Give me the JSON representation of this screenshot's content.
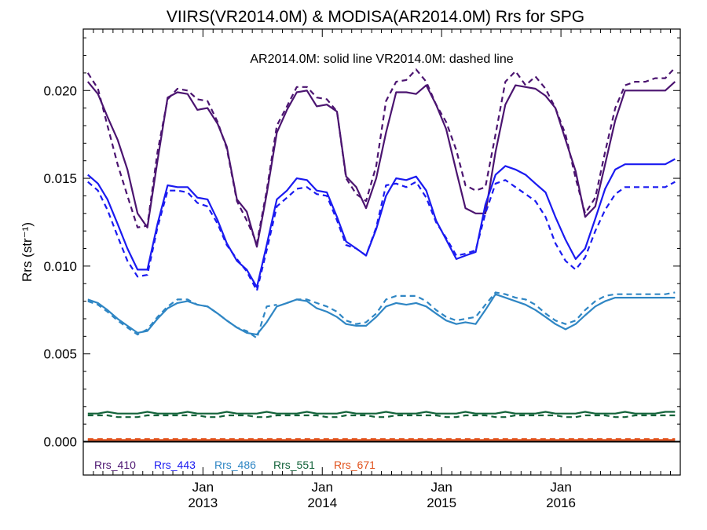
{
  "chart_data": {
    "type": "line",
    "title": "VIIRS(VR2014.0M) & MODISA(AR2014.0M)  Rrs for SPG",
    "annotation": "AR2014.0M: solid line   VR2014.0M: dashed line",
    "ylabel": "Rrs (str⁻¹)",
    "xlabel": "",
    "ylim": [
      -0.0019,
      0.0235
    ],
    "xlim": [
      "2012-01-01",
      "2016-12-31"
    ],
    "grid": false,
    "legend_placement": "bottom-left inside",
    "y_ticks": [
      {
        "value": 0.0,
        "label": "0.000"
      },
      {
        "value": 0.005,
        "label": "0.005"
      },
      {
        "value": 0.01,
        "label": "0.010"
      },
      {
        "value": 0.015,
        "label": "0.015"
      },
      {
        "value": 0.02,
        "label": "0.020"
      }
    ],
    "x_ticks": [
      {
        "date": "2013-01-01",
        "month": "Jan",
        "year": "2013"
      },
      {
        "date": "2014-01-01",
        "month": "Jan",
        "year": "2014"
      },
      {
        "date": "2015-01-01",
        "month": "Jan",
        "year": "2015"
      },
      {
        "date": "2016-01-01",
        "month": "Jan",
        "year": "2016"
      }
    ],
    "x": [
      "2012-01",
      "2012-02",
      "2012-03",
      "2012-04",
      "2012-05",
      "2012-06",
      "2012-07",
      "2012-08",
      "2012-09",
      "2012-10",
      "2012-11",
      "2012-12",
      "2013-01",
      "2013-02",
      "2013-03",
      "2013-04",
      "2013-05",
      "2013-06",
      "2013-07",
      "2013-08",
      "2013-09",
      "2013-10",
      "2013-11",
      "2013-12",
      "2014-01",
      "2014-02",
      "2014-03",
      "2014-04",
      "2014-05",
      "2014-06",
      "2014-07",
      "2014-08",
      "2014-09",
      "2014-10",
      "2014-11",
      "2014-12",
      "2015-01",
      "2015-02",
      "2015-03",
      "2015-04",
      "2015-05",
      "2015-06",
      "2015-07",
      "2015-08",
      "2015-09",
      "2015-10",
      "2015-11",
      "2015-12",
      "2016-01",
      "2016-02",
      "2016-03",
      "2016-04",
      "2016-05",
      "2016-06",
      "2016-07",
      "2016-08",
      "2016-09",
      "2016-10",
      "2016-11",
      "2016-12"
    ],
    "series": [
      {
        "name": "Rrs_410",
        "sensor": "AR2014.0M",
        "color": "#4b1470",
        "dash": false,
        "break_after_index": null,
        "values": [
          0.0205,
          0.0198,
          0.0185,
          0.0172,
          0.0155,
          0.013,
          0.0122,
          0.016,
          0.0196,
          0.0199,
          0.0198,
          0.0189,
          0.019,
          0.0181,
          0.0168,
          0.0138,
          0.0131,
          0.0111,
          0.0141,
          0.0176,
          0.0189,
          0.0199,
          0.02,
          0.0191,
          0.0192,
          0.0188,
          0.0151,
          0.0145,
          0.0133,
          0.015,
          0.0176,
          0.0199,
          0.0199,
          0.0198,
          0.0203,
          0.0192,
          0.0178,
          0.0154,
          0.0133,
          0.013,
          0.013,
          0.0165,
          0.0192,
          0.0203,
          0.0202,
          0.0201,
          0.0197,
          0.019,
          0.0172,
          0.0154,
          0.0128,
          0.0134,
          0.0158,
          0.0183,
          0.02,
          0.02,
          0.02,
          0.02,
          0.02,
          0.0205
        ]
      },
      {
        "name": "Rrs_410",
        "sensor": "VR2014.0M",
        "color": "#4b1470",
        "dash": true,
        "break_after_index": null,
        "values": [
          0.021,
          0.0201,
          0.018,
          0.0158,
          0.014,
          0.0122,
          0.0123,
          0.0165,
          0.0195,
          0.0201,
          0.02,
          0.0195,
          0.0194,
          0.0182,
          0.0167,
          0.0137,
          0.0126,
          0.0113,
          0.0143,
          0.018,
          0.0191,
          0.0202,
          0.0202,
          0.0196,
          0.0195,
          0.0188,
          0.015,
          0.0141,
          0.0137,
          0.0157,
          0.0194,
          0.0205,
          0.0206,
          0.0212,
          0.0205,
          0.0192,
          0.0182,
          0.0166,
          0.0146,
          0.0143,
          0.0145,
          0.0175,
          0.0205,
          0.0211,
          0.0203,
          0.0208,
          0.0201,
          0.019,
          0.0175,
          0.015,
          0.013,
          0.0139,
          0.0165,
          0.019,
          0.0203,
          0.0205,
          0.0205,
          0.0207,
          0.0207,
          0.0213
        ]
      },
      {
        "name": "Rrs_443",
        "sensor": "AR2014.0M",
        "color": "#1a1af0",
        "dash": false,
        "break_after_index": null,
        "values": [
          0.0152,
          0.0147,
          0.0138,
          0.0124,
          0.011,
          0.0098,
          0.0098,
          0.0124,
          0.0146,
          0.0145,
          0.0145,
          0.0139,
          0.0138,
          0.0126,
          0.0113,
          0.0103,
          0.0098,
          0.0088,
          0.0112,
          0.0138,
          0.0143,
          0.015,
          0.0149,
          0.0143,
          0.0142,
          0.0128,
          0.0114,
          0.011,
          0.0106,
          0.0121,
          0.014,
          0.015,
          0.0149,
          0.0151,
          0.0143,
          0.0126,
          0.0115,
          0.0104,
          0.0106,
          0.0108,
          0.0135,
          0.0152,
          0.0157,
          0.0155,
          0.0152,
          0.0147,
          0.0142,
          0.0128,
          0.0115,
          0.0104,
          0.011,
          0.0127,
          0.0144,
          0.0155,
          0.0158,
          0.0158,
          0.0158,
          0.0158,
          0.0158,
          0.0161
        ]
      },
      {
        "name": "Rrs_443",
        "sensor": "VR2014.0M",
        "color": "#1a1af0",
        "dash": true,
        "break_after_index": null,
        "values": [
          0.0148,
          0.0143,
          0.0132,
          0.0117,
          0.0103,
          0.0094,
          0.0095,
          0.0122,
          0.0143,
          0.0143,
          0.0142,
          0.0136,
          0.0134,
          0.0124,
          0.0112,
          0.0104,
          0.0097,
          0.0086,
          0.0109,
          0.0134,
          0.0139,
          0.0144,
          0.0145,
          0.0141,
          0.014,
          0.0126,
          0.0112,
          0.011,
          0.0106,
          0.0122,
          0.0146,
          0.0147,
          0.0145,
          0.0148,
          0.0139,
          0.0125,
          0.0116,
          0.0106,
          0.0107,
          0.0109,
          0.013,
          0.0147,
          0.0149,
          0.0145,
          0.0141,
          0.0137,
          0.0128,
          0.0113,
          0.0103,
          0.0098,
          0.0105,
          0.012,
          0.0132,
          0.0141,
          0.0145,
          0.0145,
          0.0145,
          0.0145,
          0.0145,
          0.0148
        ]
      },
      {
        "name": "Rrs_486",
        "sensor": "AR2014.0M",
        "color": "#2f86c4",
        "dash": false,
        "break_after_index": null,
        "values": [
          0.0081,
          0.0079,
          0.0075,
          0.007,
          0.0066,
          0.0062,
          0.0063,
          0.007,
          0.0076,
          0.0079,
          0.008,
          0.0078,
          0.0077,
          0.0073,
          0.0069,
          0.0065,
          0.0062,
          0.0061,
          0.0068,
          0.0077,
          0.0079,
          0.0081,
          0.008,
          0.0076,
          0.0074,
          0.0071,
          0.0067,
          0.0066,
          0.0066,
          0.0071,
          0.0077,
          0.0079,
          0.0078,
          0.0079,
          0.0077,
          0.0073,
          0.0069,
          0.0067,
          0.0068,
          0.0067,
          0.0075,
          0.0084,
          0.0082,
          0.008,
          0.0078,
          0.0075,
          0.0071,
          0.0067,
          0.0064,
          0.0067,
          0.0072,
          0.0077,
          0.008,
          0.0082,
          0.0082,
          0.0082,
          0.0082,
          0.0082,
          0.0082,
          0.0082
        ]
      },
      {
        "name": "Rrs_486",
        "sensor": "VR2014.0M",
        "color": "#2f86c4",
        "dash": true,
        "break_after_index": 19,
        "values": [
          0.008,
          0.0078,
          0.0074,
          0.0069,
          0.0065,
          0.0061,
          0.0064,
          0.0071,
          0.0077,
          0.0081,
          0.0081,
          0.0078,
          0.0077,
          0.0073,
          0.0069,
          0.0065,
          0.0063,
          0.0059,
          0.0077,
          0.0078,
          0.0079,
          0.0081,
          0.0081,
          0.0079,
          0.0077,
          0.0074,
          0.0069,
          0.0067,
          0.0068,
          0.0073,
          0.0081,
          0.0083,
          0.0083,
          0.0083,
          0.008,
          0.0075,
          0.0071,
          0.0069,
          0.007,
          0.0071,
          0.0078,
          0.0085,
          0.0084,
          0.0082,
          0.0081,
          0.0078,
          0.0073,
          0.0069,
          0.0067,
          0.0069,
          0.0075,
          0.008,
          0.0083,
          0.0084,
          0.0084,
          0.0084,
          0.0084,
          0.0084,
          0.0084,
          0.0085
        ]
      },
      {
        "name": "Rrs_551",
        "sensor": "AR2014.0M",
        "color": "#13633a",
        "dash": false,
        "break_after_index": null,
        "values": [
          0.0016,
          0.0016,
          0.0017,
          0.0016,
          0.0016,
          0.0016,
          0.0017,
          0.0016,
          0.0016,
          0.0016,
          0.0017,
          0.0016,
          0.0016,
          0.0016,
          0.0017,
          0.0016,
          0.0016,
          0.0016,
          0.0017,
          0.0016,
          0.0016,
          0.0016,
          0.0017,
          0.0016,
          0.0016,
          0.0016,
          0.0017,
          0.0016,
          0.0016,
          0.0016,
          0.0017,
          0.0016,
          0.0016,
          0.0016,
          0.0017,
          0.0016,
          0.0016,
          0.0016,
          0.0017,
          0.0016,
          0.0016,
          0.0016,
          0.0017,
          0.0016,
          0.0016,
          0.0016,
          0.0017,
          0.0016,
          0.0016,
          0.0016,
          0.0017,
          0.0016,
          0.0016,
          0.0016,
          0.0017,
          0.0016,
          0.0016,
          0.0016,
          0.0017,
          0.0017
        ]
      },
      {
        "name": "Rrs_551",
        "sensor": "VR2014.0M",
        "color": "#13633a",
        "dash": true,
        "break_after_index": null,
        "values": [
          0.0015,
          0.0015,
          0.0015,
          0.0014,
          0.0014,
          0.0014,
          0.0015,
          0.0015,
          0.0015,
          0.0015,
          0.0015,
          0.0015,
          0.0014,
          0.0014,
          0.0015,
          0.0015,
          0.0015,
          0.0014,
          0.0014,
          0.0015,
          0.0015,
          0.0015,
          0.0015,
          0.0015,
          0.0014,
          0.0014,
          0.0015,
          0.0015,
          0.0015,
          0.0014,
          0.0014,
          0.0015,
          0.0015,
          0.0015,
          0.0015,
          0.0015,
          0.0014,
          0.0014,
          0.0015,
          0.0015,
          0.0015,
          0.0014,
          0.0014,
          0.0015,
          0.0015,
          0.0015,
          0.0015,
          0.0015,
          0.0014,
          0.0014,
          0.0015,
          0.0015,
          0.0015,
          0.0014,
          0.0014,
          0.0015,
          0.0015,
          0.0015,
          0.0015,
          0.0015
        ]
      },
      {
        "name": "Rrs_671",
        "sensor": "AR2014.0M",
        "color": "#e0501a",
        "dash": false,
        "break_after_index": null,
        "values": [
          0.0001,
          0.0001,
          0.0001,
          0.0001,
          0.0001,
          0.0001,
          0.0001,
          0.0001,
          0.0001,
          0.0001,
          0.0001,
          0.0001,
          0.0001,
          0.0001,
          0.0001,
          0.0001,
          0.0001,
          0.0001,
          0.0001,
          0.0001,
          0.0001,
          0.0001,
          0.0001,
          0.0001,
          0.0001,
          0.0001,
          0.0001,
          0.0001,
          0.0001,
          0.0001,
          0.0001,
          0.0001,
          0.0001,
          0.0001,
          0.0001,
          0.0001,
          0.0001,
          0.0001,
          0.0001,
          0.0001,
          0.0001,
          0.0001,
          0.0001,
          0.0001,
          0.0001,
          0.0001,
          0.0001,
          0.0001,
          0.0001,
          0.0001,
          0.0001,
          0.0001,
          0.0001,
          0.0001,
          0.0001,
          0.0001,
          0.0001,
          0.0001,
          0.0001,
          0.0001
        ]
      },
      {
        "name": "Rrs_671",
        "sensor": "VR2014.0M",
        "color": "#e0501a",
        "dash": true,
        "break_after_index": null,
        "values": [
          0.00015,
          0.00015,
          0.00015,
          0.00015,
          0.00015,
          0.00015,
          0.00015,
          0.00015,
          0.00015,
          0.00015,
          0.00015,
          0.00015,
          0.00015,
          0.00015,
          0.00015,
          0.00015,
          0.00015,
          0.00015,
          0.00015,
          0.00015,
          0.00015,
          0.00015,
          0.00015,
          0.00015,
          0.00015,
          0.00015,
          0.00015,
          0.00015,
          0.00015,
          0.00015,
          0.00015,
          0.00015,
          0.00015,
          0.00015,
          0.00015,
          0.00015,
          0.00015,
          0.00015,
          0.00015,
          0.00015,
          0.00015,
          0.00015,
          0.00015,
          0.00015,
          0.00015,
          0.00015,
          0.00015,
          0.00015,
          0.00015,
          0.00015,
          0.00015,
          0.00015,
          0.00015,
          0.00015,
          0.00015,
          0.00015,
          0.00015,
          0.00015,
          0.00015,
          0.00015
        ]
      }
    ],
    "legend": [
      {
        "label": "Rrs_410",
        "color": "#4b1470"
      },
      {
        "label": "Rrs_443",
        "color": "#1a1af0"
      },
      {
        "label": "Rrs_486",
        "color": "#2f86c4"
      },
      {
        "label": "Rrs_551",
        "color": "#13633a"
      },
      {
        "label": "Rrs_671",
        "color": "#e0501a"
      }
    ],
    "zero_line": true
  }
}
